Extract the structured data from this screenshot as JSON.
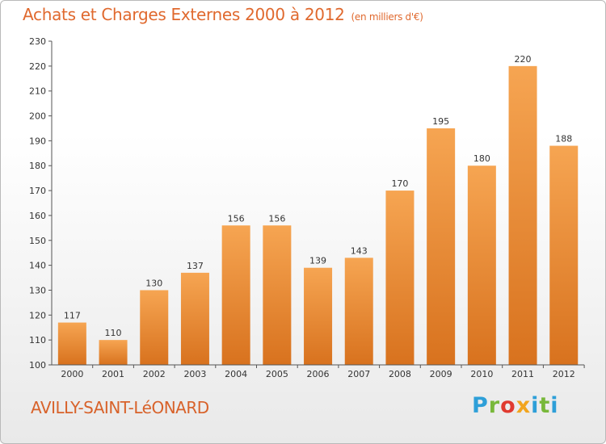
{
  "header": {
    "title": "Achats et Charges Externes 2000 à 2012",
    "unit": "(en milliers d'€)"
  },
  "footer": {
    "place": "AVILLY-SAINT-LéONARD",
    "logo": [
      "P",
      "r",
      "o",
      "x",
      "i",
      "t",
      "i"
    ]
  },
  "colors": {
    "title": "#e0692e",
    "bar_top": "#f6a552",
    "bar_bottom": "#d8721e",
    "axis": "#555555"
  },
  "chart_data": {
    "type": "bar",
    "title": "Achats et Charges Externes 2000 à 2012",
    "xlabel": "",
    "ylabel": "",
    "categories": [
      "2000",
      "2001",
      "2002",
      "2003",
      "2004",
      "2005",
      "2006",
      "2007",
      "2008",
      "2009",
      "2010",
      "2011",
      "2012"
    ],
    "values": [
      117,
      110,
      130,
      137,
      156,
      156,
      139,
      143,
      170,
      195,
      180,
      220,
      188
    ],
    "ylim": [
      100,
      230
    ],
    "yticks": [
      100,
      110,
      120,
      130,
      140,
      150,
      160,
      170,
      180,
      190,
      200,
      210,
      220,
      230
    ],
    "grid": false,
    "data_labels": true
  }
}
